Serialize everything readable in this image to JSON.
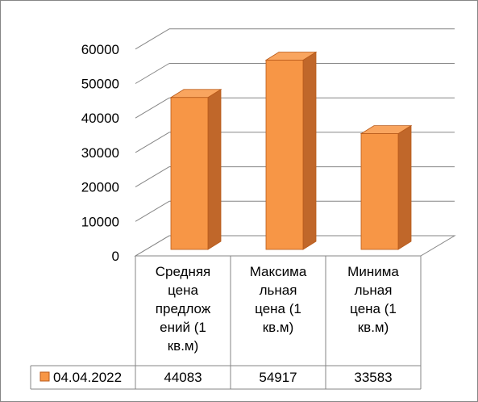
{
  "chart_data": {
    "type": "bar",
    "categories": [
      "Средняя цена предложений (1 кв.м)",
      "Максимальная цена (1 кв.м)",
      "Минимальная цена (1 кв.м)"
    ],
    "category_lines": [
      [
        "Средняя",
        "цена",
        "предлож",
        "ений (1",
        "кв.м)"
      ],
      [
        "Максима",
        "льная",
        "цена (1",
        "кв.м)"
      ],
      [
        "Минима",
        "льная",
        "цена (1",
        "кв.м)"
      ]
    ],
    "series": [
      {
        "name": "04.04.2022",
        "values": [
          44083,
          54917,
          33583
        ],
        "value_labels": [
          "44083",
          "54917",
          "33583"
        ]
      }
    ],
    "ylim": [
      0,
      60000
    ],
    "yticks": [
      "0",
      "10000",
      "20000",
      "30000",
      "40000",
      "50000",
      "60000"
    ],
    "grid": true,
    "three_d": true,
    "data_table": true,
    "colors": {
      "bar_front": "#F79646",
      "bar_side": "#C0672A",
      "bar_top": "#F9A55F",
      "bar_edge": "#B85A1A",
      "grid": "#868686",
      "border": "#868686",
      "text": "#000000"
    }
  }
}
